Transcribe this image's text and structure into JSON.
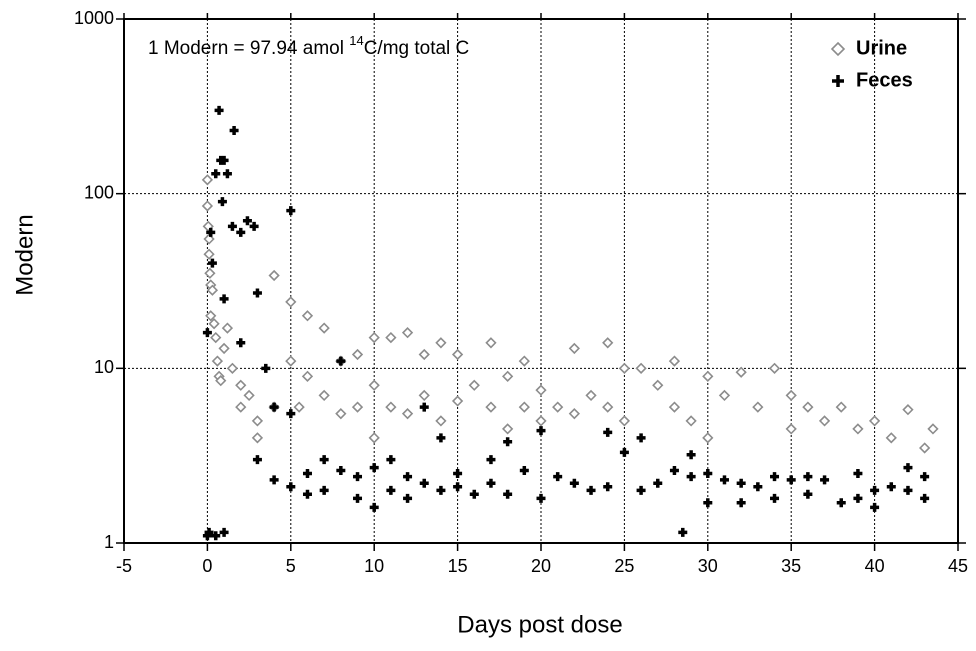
{
  "chart_data": {
    "type": "scatter",
    "annotation": {
      "prefix": "1 Modern = 97.94 amol ",
      "superscript": "14",
      "suffix": "C/mg total C"
    },
    "xlabel": "Days post dose",
    "ylabel": "Modern",
    "xlim": [
      -5,
      45
    ],
    "xticks": [
      -5,
      0,
      5,
      10,
      15,
      20,
      25,
      30,
      35,
      40,
      45
    ],
    "ylim": [
      1,
      1000
    ],
    "yticks": [
      1,
      10,
      100,
      1000
    ],
    "log_y": true,
    "grid": true,
    "legend": "upper right",
    "series": [
      {
        "name": "Urine",
        "color": "#8c8c8c",
        "marker": "diamond",
        "x": [
          0,
          0,
          0.05,
          0.1,
          0.1,
          0.15,
          0.2,
          0.3,
          0.2,
          0.4,
          0.5,
          0.6,
          0.7,
          0.8,
          1,
          1.2,
          1.5,
          2,
          2,
          2.5,
          3,
          3,
          4,
          4,
          5,
          5,
          5.5,
          6,
          6,
          7,
          7,
          8,
          8,
          9,
          9,
          10,
          10,
          10,
          11,
          11,
          12,
          12,
          13,
          13,
          14,
          14,
          15,
          15,
          16,
          17,
          17,
          18,
          18,
          19,
          19,
          20,
          20,
          21,
          22,
          22,
          23,
          24,
          24,
          25,
          25,
          26,
          27,
          28,
          28,
          29,
          30,
          30,
          31,
          32,
          33,
          34,
          35,
          35,
          36,
          37,
          38,
          39,
          40,
          41,
          42,
          43,
          43.5
        ],
        "values": [
          120,
          85,
          65,
          55,
          45,
          35,
          30,
          28,
          20,
          18,
          15,
          11,
          9,
          8.5,
          13,
          17,
          10,
          8,
          6,
          7,
          5,
          4,
          34,
          6,
          24,
          11,
          6,
          20,
          9,
          17,
          7,
          11,
          5.5,
          12,
          6,
          15,
          8,
          4,
          15,
          6,
          16,
          5.5,
          12,
          7,
          14,
          5,
          12,
          6.5,
          8,
          14,
          6,
          9,
          4.5,
          11,
          6,
          7.5,
          5,
          6,
          13,
          5.5,
          7,
          14,
          6,
          10,
          5,
          10,
          8,
          11,
          6,
          5,
          9,
          4,
          7,
          9.5,
          6,
          10,
          7,
          4.5,
          6,
          5,
          6,
          4.5,
          5,
          4,
          5.8,
          3.5,
          4.5
        ]
      },
      {
        "name": "Feces",
        "color": "#000000",
        "marker": "plus",
        "x": [
          0,
          0.1,
          0.5,
          1,
          0,
          0.2,
          0.3,
          0.5,
          0.7,
          0.8,
          0.9,
          1,
          1.2,
          1.6,
          1.5,
          2,
          2.4,
          2.8,
          1,
          2,
          3,
          3,
          3.5,
          4,
          4,
          5,
          5,
          5,
          6,
          6,
          7,
          7,
          8,
          8,
          9,
          9,
          10,
          10,
          11,
          11,
          12,
          12,
          13,
          13,
          14,
          14,
          15,
          15,
          16,
          17,
          17,
          18,
          18,
          19,
          20,
          20,
          21,
          22,
          23,
          24,
          24,
          25,
          26,
          26,
          27,
          28,
          28.5,
          29,
          29,
          30,
          30,
          31,
          32,
          32,
          33,
          34,
          34,
          35,
          36,
          36,
          37,
          38,
          39,
          39,
          40,
          40,
          41,
          42,
          42,
          43,
          43
        ],
        "values": [
          1.1,
          1.15,
          1.1,
          1.15,
          16,
          60,
          40,
          130,
          300,
          155,
          90,
          155,
          130,
          230,
          65,
          60,
          70,
          65,
          25,
          14,
          27,
          3,
          10,
          6,
          2.3,
          80,
          5.5,
          2.1,
          2.5,
          1.9,
          3,
          2,
          11,
          2.6,
          2.4,
          1.8,
          2.7,
          1.6,
          3,
          2,
          2.4,
          1.8,
          6,
          2.2,
          4,
          2,
          2.5,
          2.1,
          1.9,
          3,
          2.2,
          3.8,
          1.9,
          2.6,
          4.4,
          1.8,
          2.4,
          2.2,
          2,
          4.3,
          2.1,
          3.3,
          4,
          2,
          2.2,
          2.6,
          1.15,
          3.2,
          2.4,
          2.5,
          1.7,
          2.3,
          2.2,
          1.7,
          2.1,
          2.4,
          1.8,
          2.3,
          1.9,
          2.4,
          2.3,
          1.7,
          2.5,
          1.8,
          2,
          1.6,
          2.1,
          2.7,
          2,
          2.4,
          1.8
        ]
      }
    ]
  }
}
